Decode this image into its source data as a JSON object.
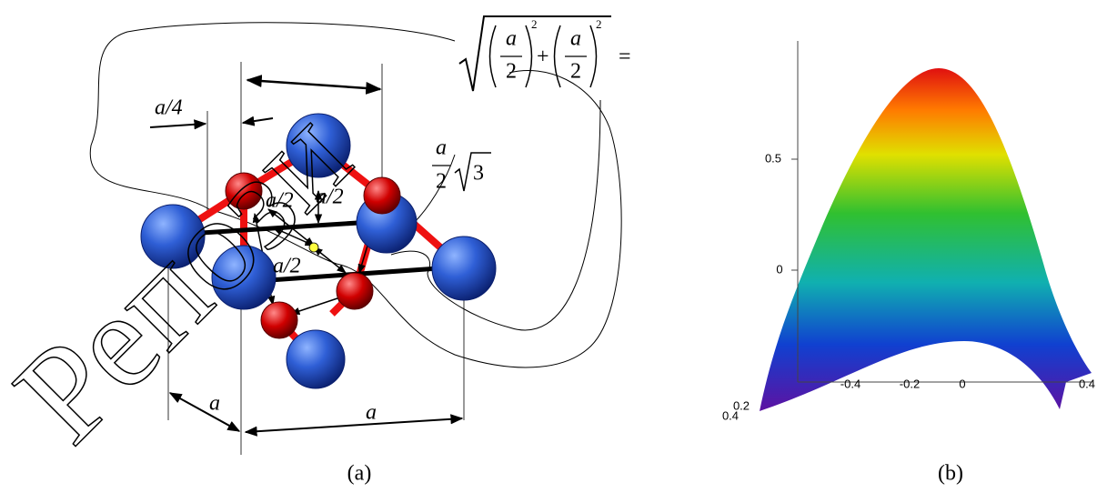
{
  "watermark": "Репози",
  "panel_a": {
    "caption": "(a)",
    "labels": {
      "a_quarter": "a/4",
      "a_bottom": "a",
      "a_left": "a",
      "a_half_1": "a/2",
      "a_half_2": "a/2",
      "a_half_3": "a/2"
    },
    "formula_diagonal": {
      "num_1": "a",
      "den_1": "2",
      "exp_1": "2",
      "plus": "+",
      "num_2": "a",
      "den_2": "2",
      "exp_2": "2",
      "equals": "="
    },
    "formula_body": {
      "num": "a",
      "den": "2",
      "root": "3"
    }
  },
  "panel_b": {
    "caption": "(b)",
    "z_tick_labels": [
      "0.5",
      "0"
    ],
    "x_tick_labels": [
      "-0.4",
      "-0.2",
      "0",
      "0.4"
    ],
    "y_tick_labels": [
      "0.2",
      "0.4"
    ]
  }
}
